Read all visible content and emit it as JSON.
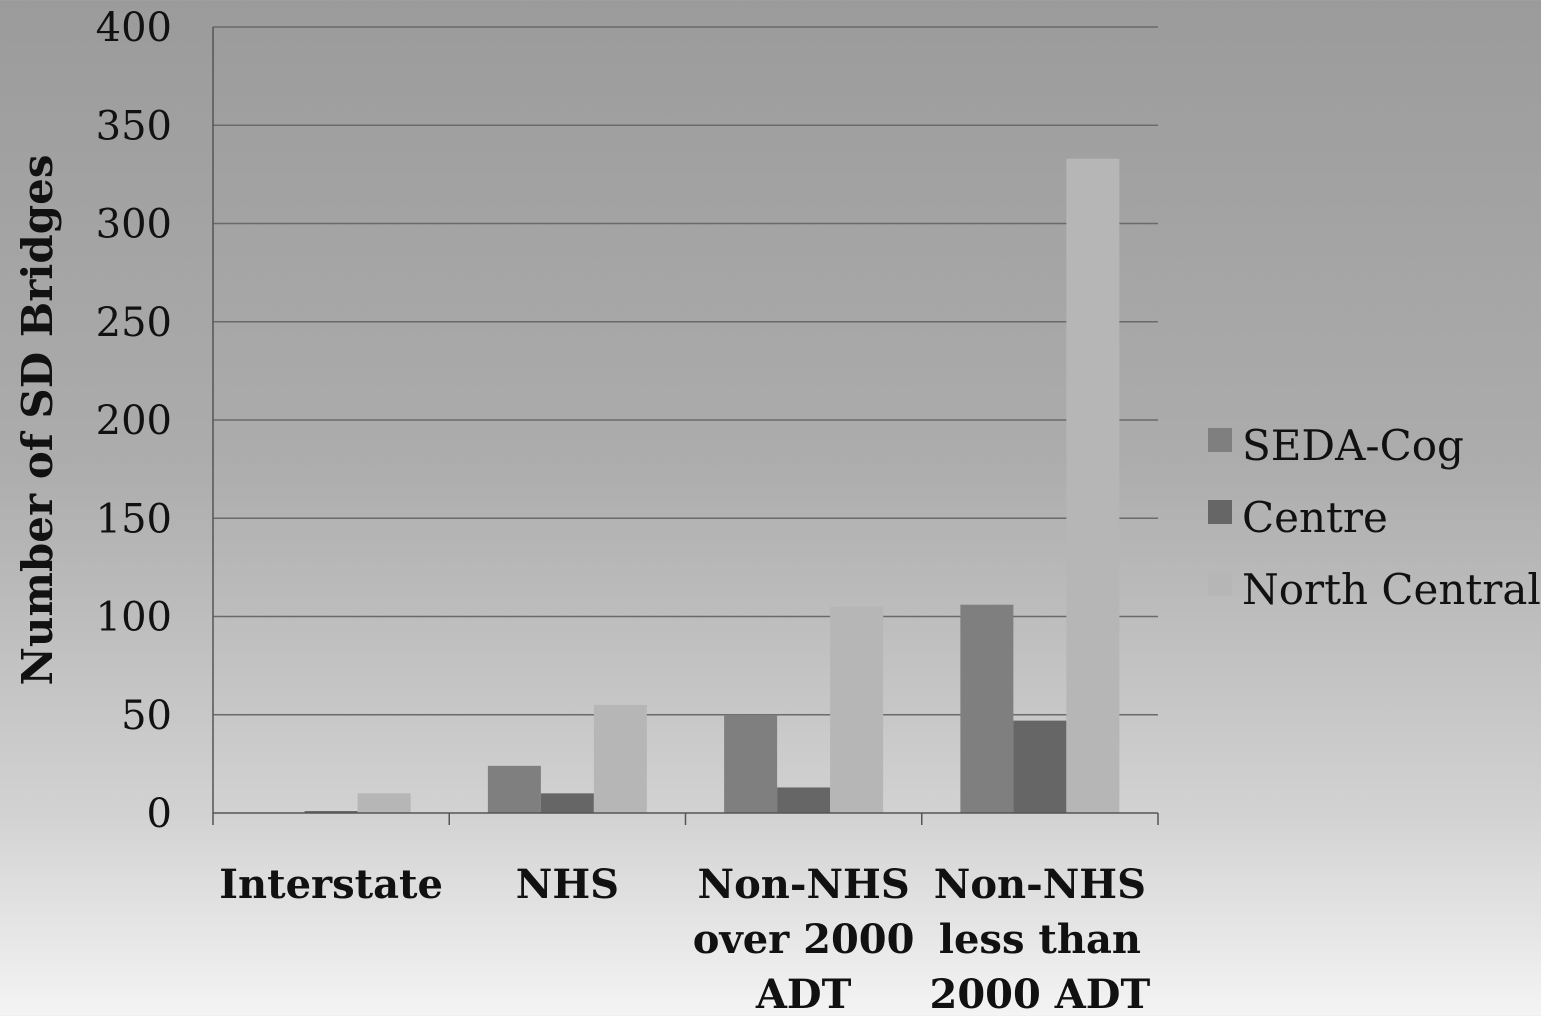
{
  "chart_data": {
    "type": "bar",
    "title": "",
    "xlabel": "",
    "ylabel": "Number of SD Bridges",
    "ylim": [
      0,
      400
    ],
    "yticks": [
      0,
      50,
      100,
      150,
      200,
      250,
      300,
      350,
      400
    ],
    "grid": true,
    "legend_position": "right",
    "categories": [
      [
        "Interstate"
      ],
      [
        "NHS"
      ],
      [
        "Non-NHS",
        "over 2000",
        "ADT"
      ],
      [
        "Non-NHS",
        "less than",
        "2000 ADT"
      ]
    ],
    "series": [
      {
        "name": "SEDA-Cog",
        "color": "#7f7f7f",
        "values": [
          0,
          24,
          50,
          106
        ]
      },
      {
        "name": "Centre",
        "color": "#666666",
        "values": [
          1,
          10,
          13,
          47
        ]
      },
      {
        "name": "North Central",
        "color": "#b6b6b6",
        "values": [
          10,
          55,
          105,
          333
        ]
      }
    ]
  },
  "colors": {
    "gridline": "#6a6a6a",
    "axis": "#555555",
    "text": "#111111"
  }
}
